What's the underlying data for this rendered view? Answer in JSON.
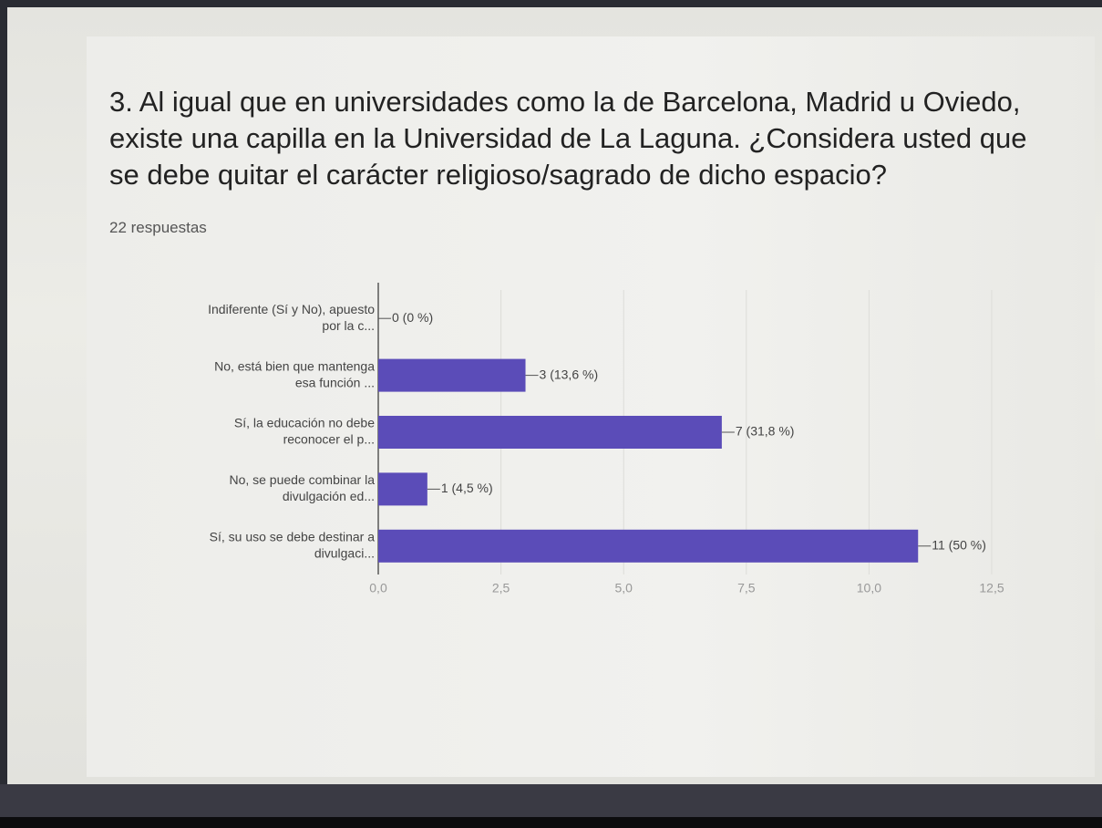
{
  "chart_data": {
    "type": "barh",
    "title": "3. Al igual que en universidades como la de Barcelona, Madrid u Oviedo, existe una capilla en la Universidad de La Laguna. ¿Considera usted que se debe quitar el carácter religioso/sagrado de dicho espacio?",
    "subtitle": "22 respuestas",
    "categories": [
      [
        "Indiferente (Sí y No), apuesto",
        "por la c..."
      ],
      [
        "No, está bien que mantenga",
        "esa función ..."
      ],
      [
        "Sí, la educación no debe",
        "reconocer el p..."
      ],
      [
        "No, se puede combinar la",
        "divulgación ed..."
      ],
      [
        "Sí, su uso se debe destinar a",
        "divulgaci..."
      ]
    ],
    "values": [
      0,
      3,
      7,
      1,
      11
    ],
    "value_labels": [
      "0 (0 %)",
      "3 (13,6 %)",
      "7 (31,8 %)",
      "1 (4,5 %)",
      "11 (50 %)"
    ],
    "color": "#5b4cb8",
    "xlim": [
      0,
      12.5
    ],
    "xticks": [
      {
        "value": 0,
        "label": "0,0"
      },
      {
        "value": 2.5,
        "label": "2,5"
      },
      {
        "value": 5,
        "label": "5,0"
      },
      {
        "value": 7.5,
        "label": "7,5"
      },
      {
        "value": 10,
        "label": "10,0"
      },
      {
        "value": 12.5,
        "label": "12,5"
      }
    ],
    "grid": true
  }
}
